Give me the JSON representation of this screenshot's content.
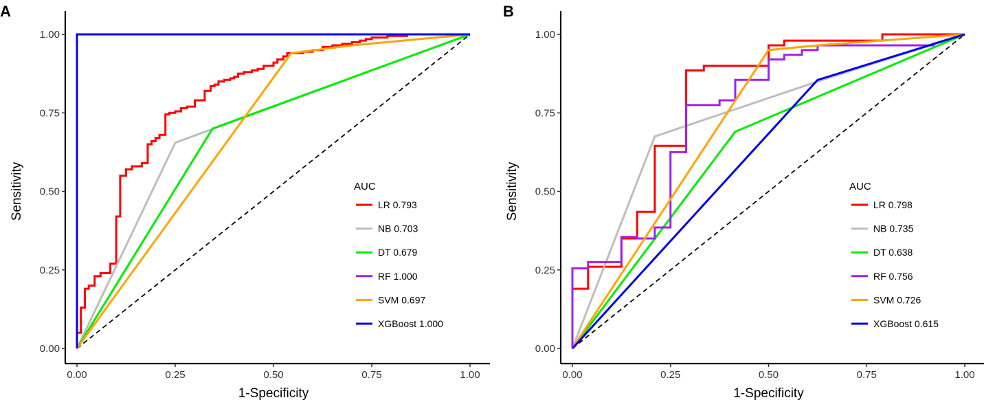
{
  "chart_data": [
    {
      "panel": "A",
      "type": "line",
      "xlabel": "1-Specificity",
      "ylabel": "Sensitivity",
      "xlim": [
        0,
        1
      ],
      "ylim": [
        0,
        1
      ],
      "xticks": [
        "0.00",
        "0.25",
        "0.50",
        "0.75",
        "1.00"
      ],
      "yticks": [
        "0.00",
        "0.25",
        "0.50",
        "0.75",
        "1.00"
      ],
      "grid": false,
      "legend": {
        "title": "AUC",
        "placement": "right"
      },
      "reference_line": {
        "style": "dashed",
        "color": "#000000",
        "from": [
          0,
          0
        ],
        "to": [
          1,
          1
        ]
      },
      "series": [
        {
          "name": "LR",
          "label": "LR 0.793",
          "auc": 0.793,
          "color": "#ff0000",
          "step": true,
          "x": [
            0,
            0,
            0.01,
            0.01,
            0.02,
            0.02,
            0.03,
            0.03,
            0.045,
            0.045,
            0.06,
            0.06,
            0.085,
            0.085,
            0.1,
            0.1,
            0.11,
            0.11,
            0.125,
            0.125,
            0.14,
            0.14,
            0.165,
            0.165,
            0.18,
            0.18,
            0.19,
            0.19,
            0.2,
            0.2,
            0.21,
            0.21,
            0.225,
            0.225,
            0.235,
            0.235,
            0.25,
            0.25,
            0.265,
            0.265,
            0.28,
            0.28,
            0.3,
            0.3,
            0.325,
            0.325,
            0.34,
            0.34,
            0.35,
            0.35,
            0.36,
            0.36,
            0.375,
            0.375,
            0.39,
            0.39,
            0.4,
            0.4,
            0.41,
            0.41,
            0.425,
            0.425,
            0.445,
            0.445,
            0.46,
            0.46,
            0.475,
            0.475,
            0.5,
            0.5,
            0.51,
            0.51,
            0.525,
            0.525,
            0.535,
            0.535,
            0.575,
            0.575,
            0.6,
            0.6,
            0.625,
            0.625,
            0.65,
            0.65,
            0.675,
            0.675,
            0.7,
            0.7,
            0.72,
            0.72,
            0.735,
            0.735,
            0.75,
            0.75,
            0.79,
            0.79,
            0.84,
            0.84,
            0.89,
            0.89
          ],
          "y": [
            0,
            0.05,
            0.05,
            0.13,
            0.13,
            0.19,
            0.19,
            0.2,
            0.2,
            0.23,
            0.23,
            0.24,
            0.24,
            0.27,
            0.27,
            0.42,
            0.42,
            0.55,
            0.55,
            0.57,
            0.57,
            0.58,
            0.58,
            0.59,
            0.59,
            0.65,
            0.65,
            0.66,
            0.66,
            0.67,
            0.67,
            0.68,
            0.68,
            0.745,
            0.745,
            0.75,
            0.75,
            0.755,
            0.755,
            0.765,
            0.765,
            0.77,
            0.77,
            0.79,
            0.79,
            0.82,
            0.82,
            0.835,
            0.835,
            0.84,
            0.84,
            0.85,
            0.85,
            0.855,
            0.855,
            0.86,
            0.86,
            0.865,
            0.865,
            0.875,
            0.875,
            0.88,
            0.88,
            0.885,
            0.885,
            0.89,
            0.89,
            0.9,
            0.9,
            0.91,
            0.91,
            0.92,
            0.92,
            0.93,
            0.93,
            0.94,
            0.94,
            0.945,
            0.945,
            0.95,
            0.95,
            0.96,
            0.96,
            0.965,
            0.965,
            0.97,
            0.97,
            0.975,
            0.975,
            0.98,
            0.98,
            0.985,
            0.985,
            0.99,
            0.99,
            0.995,
            0.995,
            1.0,
            1.0,
            1.0
          ]
        },
        {
          "name": "NB",
          "label": "NB 0.703",
          "auc": 0.703,
          "color": "#bebebe",
          "x": [
            0,
            0.25,
            1
          ],
          "y": [
            0,
            0.655,
            1
          ]
        },
        {
          "name": "DT",
          "label": "DT 0.679",
          "auc": 0.679,
          "color": "#00ee00",
          "x": [
            0,
            0.345,
            1
          ],
          "y": [
            0,
            0.7,
            1
          ]
        },
        {
          "name": "RF",
          "label": "RF 1.000",
          "auc": 1.0,
          "color": "#a020f0",
          "x": [
            0,
            0,
            1
          ],
          "y": [
            0,
            1,
            1
          ]
        },
        {
          "name": "SVM",
          "label": "SVM 0.697",
          "auc": 0.697,
          "color": "#ffa500",
          "x": [
            0,
            0.545,
            0.7,
            1
          ],
          "y": [
            0,
            0.94,
            0.965,
            1
          ]
        },
        {
          "name": "XGBoost",
          "label": "XGBoost 1.000",
          "auc": 1.0,
          "color": "#0000ee",
          "x": [
            0,
            0,
            1
          ],
          "y": [
            0,
            1,
            1
          ]
        }
      ]
    },
    {
      "panel": "B",
      "type": "line",
      "xlabel": "1-Specificity",
      "ylabel": "Sensitivity",
      "xlim": [
        0,
        1
      ],
      "ylim": [
        0,
        1
      ],
      "xticks": [
        "0.00",
        "0.25",
        "0.50",
        "0.75",
        "1.00"
      ],
      "yticks": [
        "0.00",
        "0.25",
        "0.50",
        "0.75",
        "1.00"
      ],
      "grid": false,
      "legend": {
        "title": "AUC",
        "placement": "right"
      },
      "reference_line": {
        "style": "dashed",
        "color": "#000000",
        "from": [
          0,
          0
        ],
        "to": [
          1,
          1
        ]
      },
      "series": [
        {
          "name": "LR",
          "label": "LR 0.798",
          "auc": 0.798,
          "color": "#ff0000",
          "step": true,
          "x": [
            0,
            0,
            0.04,
            0.04,
            0.125,
            0.125,
            0.165,
            0.165,
            0.21,
            0.21,
            0.29,
            0.29,
            0.335,
            0.335,
            0.5,
            0.5,
            0.54,
            0.54,
            0.79,
            0.79,
            1.0
          ],
          "y": [
            0,
            0.19,
            0.19,
            0.26,
            0.26,
            0.35,
            0.35,
            0.435,
            0.435,
            0.645,
            0.645,
            0.885,
            0.885,
            0.9,
            0.9,
            0.965,
            0.965,
            0.98,
            0.98,
            1.0,
            1.0
          ]
        },
        {
          "name": "NB",
          "label": "NB 0.735",
          "auc": 0.735,
          "color": "#bebebe",
          "x": [
            0,
            0.21,
            0.625,
            1
          ],
          "y": [
            0,
            0.675,
            0.85,
            1
          ]
        },
        {
          "name": "DT",
          "label": "DT 0.638",
          "auc": 0.638,
          "color": "#00ee00",
          "x": [
            0,
            0.415,
            1
          ],
          "y": [
            0,
            0.69,
            1
          ]
        },
        {
          "name": "RF",
          "label": "RF 0.756",
          "auc": 0.756,
          "color": "#a020f0",
          "step": true,
          "x": [
            0,
            0,
            0.04,
            0.04,
            0.125,
            0.125,
            0.165,
            0.165,
            0.21,
            0.21,
            0.25,
            0.25,
            0.29,
            0.29,
            0.375,
            0.375,
            0.415,
            0.415,
            0.5,
            0.5,
            0.54,
            0.54,
            0.585,
            0.585,
            0.625,
            0.625,
            0.92,
            0.92,
            1.0
          ],
          "y": [
            0,
            0.255,
            0.255,
            0.275,
            0.275,
            0.355,
            0.355,
            0.35,
            0.35,
            0.385,
            0.385,
            0.625,
            0.625,
            0.775,
            0.775,
            0.79,
            0.79,
            0.855,
            0.855,
            0.92,
            0.92,
            0.935,
            0.935,
            0.95,
            0.95,
            0.965,
            0.965,
            0.97,
            1.0
          ]
        },
        {
          "name": "SVM",
          "label": "SVM 0.726",
          "auc": 0.726,
          "color": "#ffa500",
          "x": [
            0,
            0.5,
            0.625,
            1
          ],
          "y": [
            0,
            0.95,
            0.965,
            1
          ]
        },
        {
          "name": "XGBoost",
          "label": "XGBoost 0.615",
          "auc": 0.615,
          "color": "#0000ee",
          "x": [
            0,
            0.625,
            1
          ],
          "y": [
            0,
            0.855,
            1
          ]
        }
      ]
    }
  ]
}
